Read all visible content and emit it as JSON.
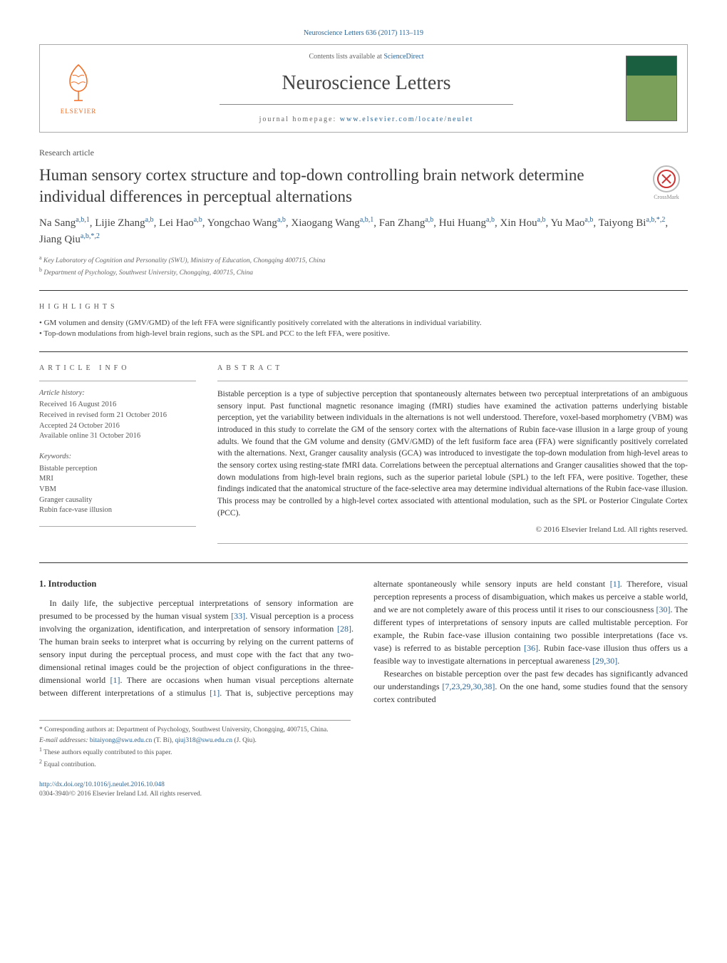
{
  "journal": {
    "citation": "Neuroscience Letters 636 (2017) 113–119",
    "contents_prefix": "Contents lists available at ",
    "contents_link": "ScienceDirect",
    "name": "Neuroscience Letters",
    "homepage_prefix": "journal homepage: ",
    "homepage_url": "www.elsevier.com/locate/neulet",
    "publisher": "ELSEVIER"
  },
  "article": {
    "type": "Research article",
    "title": "Human sensory cortex structure and top-down controlling brain network determine individual differences in perceptual alternations",
    "crossmark": "CrossMark"
  },
  "authors_html": "Na Sang<sup>a,b,1</sup>, Lijie Zhang<sup>a,b</sup>, Lei Hao<sup>a,b</sup>, Yongchao Wang<sup>a,b</sup>, Xiaogang Wang<sup>a,b,1</sup>, Fan Zhang<sup>a,b</sup>, Hui Huang<sup>a,b</sup>, Xin Hou<sup>a,b</sup>, Yu Mao<sup>a,b</sup>, Taiyong Bi<sup>a,b,*,2</sup>, Jiang Qiu<sup>a,b,*,2</sup>",
  "affiliations": {
    "a": "Key Laboratory of Cognition and Personality (SWU), Ministry of Education, Chongqing 400715, China",
    "b": "Department of Psychology, Southwest University, Chongqing, 400715, China"
  },
  "highlights": {
    "heading": "HIGHLIGHTS",
    "items": [
      "GM volumen and density (GMV/GMD) of the left FFA were significantly positively correlated with the alterations in individual variability.",
      "Top-down modulations from high-level brain regions, such as the SPL and PCC to the left FFA, were positive."
    ]
  },
  "article_info": {
    "heading": "ARTICLE INFO",
    "history_label": "Article history:",
    "received": "Received 16 August 2016",
    "revised": "Received in revised form 21 October 2016",
    "accepted": "Accepted 24 October 2016",
    "online": "Available online 31 October 2016",
    "keywords_label": "Keywords:",
    "keywords": [
      "Bistable perception",
      "MRI",
      "VBM",
      "Granger causality",
      "Rubin face-vase illusion"
    ]
  },
  "abstract": {
    "heading": "ABSTRACT",
    "text": "Bistable perception is a type of subjective perception that spontaneously alternates between two perceptual interpretations of an ambiguous sensory input. Past functional magnetic resonance imaging (fMRI) studies have examined the activation patterns underlying bistable perception, yet the variability between individuals in the alternations is not well understood. Therefore, voxel-based morphometry (VBM) was introduced in this study to correlate the GM of the sensory cortex with the alternations of Rubin face-vase illusion in a large group of young adults. We found that the GM volume and density (GMV/GMD) of the left fusiform face area (FFA) were significantly positively correlated with the alternations. Next, Granger causality analysis (GCA) was introduced to investigate the top-down modulation from high-level areas to the sensory cortex using resting-state fMRI data. Correlations between the perceptual alternations and Granger causalities showed that the top-down modulations from high-level brain regions, such as the superior parietal lobule (SPL) to the left FFA, were positive. Together, these findings indicated that the anatomical structure of the face-selective area may determine individual alternations of the Rubin face-vase illusion. This process may be controlled by a high-level cortex associated with attentional modulation, such as the SPL or Posterior Cingulate Cortex (PCC).",
    "copyright": "© 2016 Elsevier Ireland Ltd. All rights reserved."
  },
  "intro": {
    "heading": "1. Introduction",
    "p1_a": "In daily life, the subjective perceptual interpretations of sensory information are presumed to be processed by the human visual system ",
    "p1_r1": "[33]",
    "p1_b": ". Visual perception is a process involving the organization, identification, and interpretation of sensory information ",
    "p1_r2": "[28]",
    "p1_c": ". The human brain seeks to interpret what is occurring by relying on the current patterns of sensory input during the perceptual process, and must cope with the fact that any two-dimensional ",
    "p2_a": "retinal images could be the projection of object configurations in the three-dimensional world ",
    "p2_r1": "[1]",
    "p2_b": ". There are occasions when human visual perceptions alternate between different interpretations of a stimulus ",
    "p2_r2": "[1]",
    "p2_c": ". That is, subjective perceptions may alternate spontaneously while sensory inputs are held constant ",
    "p2_r3": "[1]",
    "p2_d": ". Therefore, visual perception represents a process of disambiguation, which makes us perceive a stable world, and we are not completely aware of this process until it rises to our consciousness ",
    "p2_r4": "[30]",
    "p2_e": ". The different types of interpretations of sensory inputs are called multistable perception. For example, the Rubin face-vase illusion containing two possible interpretations (face vs. vase) is referred to as bistable perception ",
    "p2_r5": "[36]",
    "p2_f": ". Rubin face-vase illusion thus offers us a feasible way to investigate alternations in perceptual awareness ",
    "p2_r6": "[29,30]",
    "p2_g": ".",
    "p3_a": "Researches on bistable perception over the past few decades has significantly advanced our understandings ",
    "p3_r1": "[7,23,29,30,38]",
    "p3_b": ". On the one hand, some studies found that the sensory cortex contributed"
  },
  "footnotes": {
    "corr": "* Corresponding authors at: Department of Psychology, Southwest University, Chongqing, 400715, China.",
    "email_label": "E-mail addresses: ",
    "email1": "bitaiyong@swu.edu.cn",
    "email1_who": " (T. Bi), ",
    "email2": "qiuj318@swu.edu.cn",
    "email2_who": " (J. Qiu).",
    "n1": "These authors equally contributed to this paper.",
    "n2": "Equal contribution."
  },
  "footer": {
    "doi": "http://dx.doi.org/10.1016/j.neulet.2016.10.048",
    "issn": "0304-3940/© 2016 Elsevier Ireland Ltd. All rights reserved."
  },
  "colors": {
    "link": "#2a6496",
    "orange": "#f36b21",
    "text": "#333333"
  }
}
